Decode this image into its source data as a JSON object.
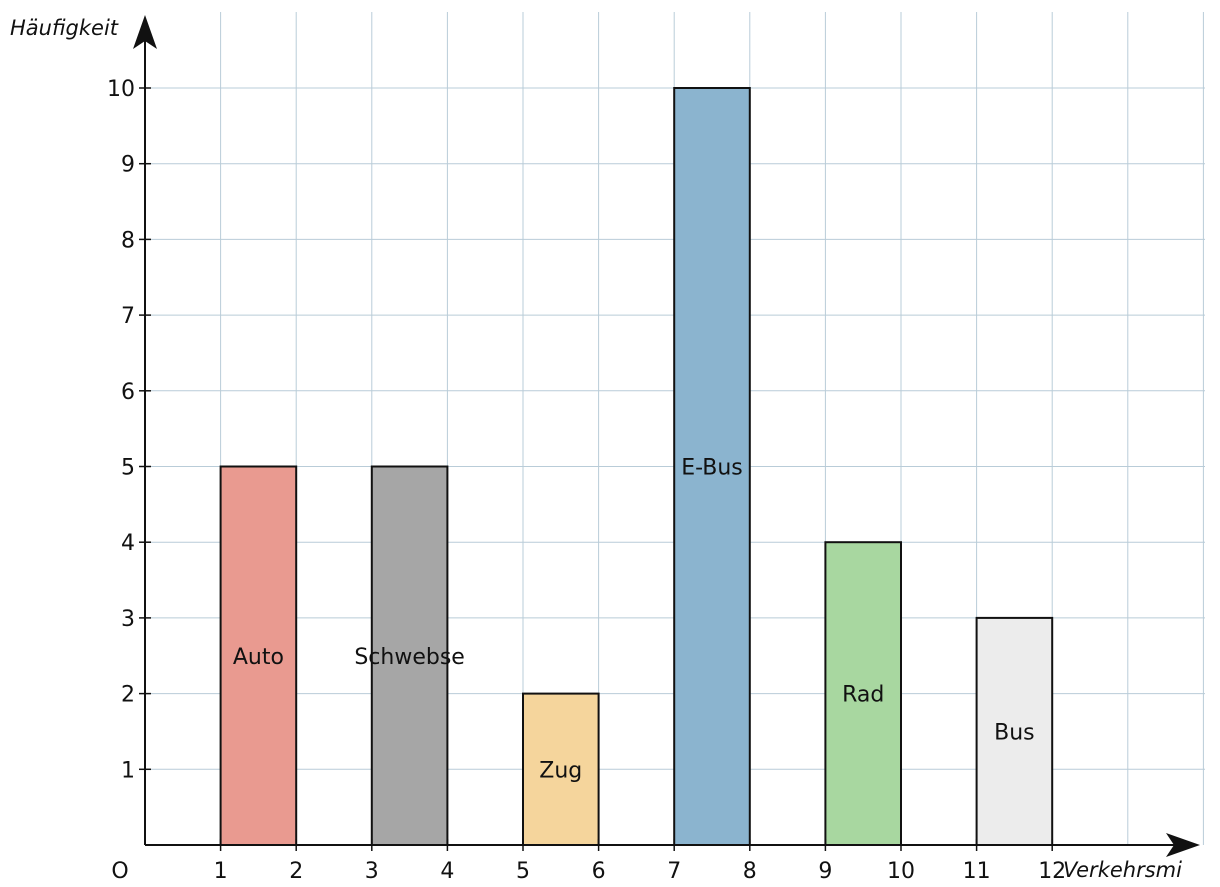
{
  "chart_data": {
    "type": "bar",
    "xlabel": "Verkehrsmi",
    "ylabel": "Häufigkeit",
    "origin_label": "O",
    "xlim": [
      0,
      14
    ],
    "ylim": [
      0,
      10
    ],
    "x_ticks": [
      1,
      2,
      3,
      4,
      5,
      6,
      7,
      8,
      9,
      10,
      11,
      12
    ],
    "y_ticks": [
      1,
      2,
      3,
      4,
      5,
      6,
      7,
      8,
      9,
      10
    ],
    "grid": true,
    "bars": [
      {
        "label": "Auto",
        "x_start": 1,
        "x_end": 2,
        "value": 5,
        "color": "#e99a90",
        "label_y": 2.5
      },
      {
        "label": "Schwebse",
        "x_start": 3,
        "x_end": 4,
        "value": 5,
        "color": "#a6a6a6",
        "label_y": 2.5
      },
      {
        "label": "Zug",
        "x_start": 5,
        "x_end": 6,
        "value": 2,
        "color": "#f5d59c",
        "label_y": 1
      },
      {
        "label": "E-Bus",
        "x_start": 7,
        "x_end": 8,
        "value": 10,
        "color": "#8bb4cf",
        "label_y": 5
      },
      {
        "label": "Rad",
        "x_start": 9,
        "x_end": 10,
        "value": 4,
        "color": "#a8d7a0",
        "label_y": 2
      },
      {
        "label": "Bus",
        "x_start": 11,
        "x_end": 12,
        "value": 3,
        "color": "#ececec",
        "label_y": 1.5
      }
    ]
  }
}
